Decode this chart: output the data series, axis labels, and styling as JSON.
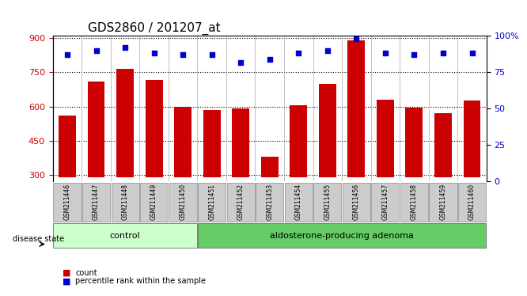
{
  "title": "GDS2860 / 201207_at",
  "samples": [
    "GSM211446",
    "GSM211447",
    "GSM211448",
    "GSM211449",
    "GSM211450",
    "GSM211451",
    "GSM211452",
    "GSM211453",
    "GSM211454",
    "GSM211455",
    "GSM211456",
    "GSM211457",
    "GSM211458",
    "GSM211459",
    "GSM211460"
  ],
  "counts": [
    560,
    710,
    765,
    715,
    600,
    585,
    590,
    380,
    605,
    700,
    890,
    630,
    595,
    570,
    625
  ],
  "percentiles": [
    87,
    90,
    92,
    88,
    87,
    87,
    82,
    84,
    88,
    90,
    98,
    88,
    87,
    88,
    88
  ],
  "ylim_left": [
    270,
    910
  ],
  "ylim_right": [
    0,
    100
  ],
  "yticks_left": [
    300,
    450,
    600,
    750,
    900
  ],
  "yticks_right": [
    0,
    25,
    50,
    75,
    100
  ],
  "ytick_right_labels": [
    "0",
    "25",
    "50",
    "75",
    "100%"
  ],
  "bar_color": "#cc0000",
  "dot_color": "#0000cc",
  "bar_bottom": 290,
  "control_group": [
    "GSM211446",
    "GSM211447",
    "GSM211448",
    "GSM211449",
    "GSM211450"
  ],
  "adenoma_group": [
    "GSM211451",
    "GSM211452",
    "GSM211453",
    "GSM211454",
    "GSM211455",
    "GSM211456",
    "GSM211457",
    "GSM211458",
    "GSM211459",
    "GSM211460"
  ],
  "control_label": "control",
  "adenoma_label": "aldosterone-producing adenoma",
  "disease_state_label": "disease state",
  "legend_count_label": "count",
  "legend_percentile_label": "percentile rank within the sample",
  "control_color": "#ccffcc",
  "adenoma_color": "#66cc66",
  "label_box_color": "#cccccc",
  "title_fontsize": 11,
  "axis_fontsize": 8,
  "tick_fontsize": 8
}
